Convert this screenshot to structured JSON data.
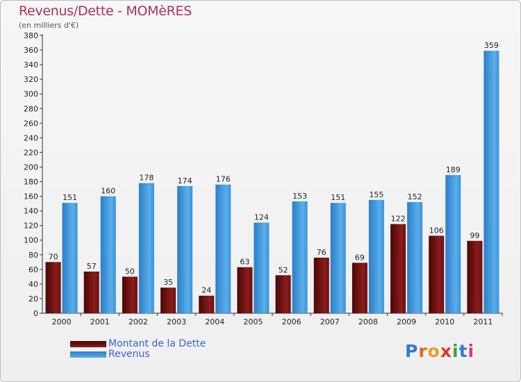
{
  "header": {
    "title": "Revenus/Dette - MOMèRES",
    "subtitle": "(en milliers d'€)"
  },
  "legend": [
    {
      "label": "Montant de la Dette",
      "color": "#6e0b0b"
    },
    {
      "label": "Revenus",
      "color": "#3a94d8"
    }
  ],
  "logo": {
    "letters": [
      "P",
      "r",
      "o",
      "x",
      "i",
      "t",
      "i"
    ],
    "colors": [
      "#2e7dd2",
      "#e06a1a",
      "#e8a020",
      "#d93a2a",
      "#3aa43a",
      "#2e7dd2",
      "#d93a6a"
    ]
  },
  "chart_data": {
    "type": "bar",
    "categories": [
      "2000",
      "2001",
      "2002",
      "2003",
      "2004",
      "2005",
      "2006",
      "2007",
      "2008",
      "2009",
      "2010",
      "2011"
    ],
    "series": [
      {
        "name": "Montant de la Dette",
        "values": [
          70,
          57,
          50,
          35,
          24,
          63,
          52,
          76,
          69,
          122,
          106,
          99
        ]
      },
      {
        "name": "Revenus",
        "values": [
          151,
          160,
          178,
          174,
          176,
          124,
          153,
          151,
          155,
          152,
          189,
          359
        ]
      }
    ],
    "ylim": [
      0,
      380
    ],
    "ytick_step": 20,
    "grid": false,
    "legend_position": "bottom-left"
  }
}
